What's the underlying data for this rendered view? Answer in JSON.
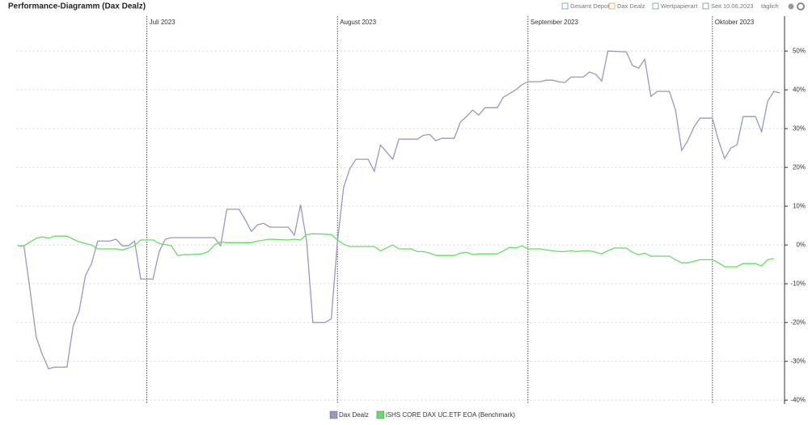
{
  "chart_data": {
    "type": "line",
    "title": "Performance-Diagramm (Dax Dealz)",
    "xlim": [
      0,
      124
    ],
    "xticks": [
      {
        "value": 21,
        "label": "Juli 2023"
      },
      {
        "value": 52,
        "label": "August 2023"
      },
      {
        "value": 83,
        "label": "September 2023"
      },
      {
        "value": 113,
        "label": "Oktober 2023"
      }
    ],
    "ylim": [
      -41,
      59
    ],
    "yticks": [
      {
        "value": 50,
        "label": "50%"
      },
      {
        "value": 40,
        "label": "40%"
      },
      {
        "value": 30,
        "label": "30%"
      },
      {
        "value": 20,
        "label": "20%"
      },
      {
        "value": 10,
        "label": "10%"
      },
      {
        "value": 0,
        "label": "0%"
      },
      {
        "value": -10,
        "label": "-10%"
      },
      {
        "value": -20,
        "label": "-20%"
      },
      {
        "value": -30,
        "label": "-30%"
      },
      {
        "value": -40,
        "label": "-40%"
      }
    ],
    "grid": true,
    "series": [
      {
        "name": "Dax Dealz",
        "color": "#9797c6",
        "x": [
          0,
          1,
          2,
          3,
          4,
          5,
          6,
          8,
          9,
          10,
          11,
          12,
          13,
          15,
          16,
          17,
          18,
          19,
          20,
          22,
          23,
          24,
          25,
          32,
          33,
          34,
          36,
          37,
          38,
          39,
          40,
          41,
          44,
          45,
          46,
          47,
          48,
          50,
          51,
          52,
          53,
          54,
          55,
          57,
          58,
          59,
          61,
          62,
          65,
          66,
          67,
          68,
          69,
          71,
          72,
          73,
          74,
          75,
          76,
          78,
          79,
          81,
          82,
          83,
          85,
          86,
          87,
          88,
          89,
          90,
          92,
          93,
          94,
          95,
          96,
          99,
          100,
          101,
          102,
          103,
          104,
          106,
          107,
          108,
          109,
          110,
          111,
          113,
          114,
          115,
          116,
          117,
          118,
          120,
          121,
          122,
          123,
          124
        ],
        "values": [
          -0.2,
          -0.2,
          -11.7,
          -23.8,
          -28.3,
          -31.9,
          -31.5,
          -31.5,
          -21.0,
          -16.9,
          -7.9,
          -4.8,
          1.0,
          1.0,
          1.5,
          -0.2,
          -0.2,
          1.0,
          -8.8,
          -8.8,
          -1.7,
          1.5,
          1.9,
          1.9,
          -0.2,
          9.2,
          9.2,
          6.5,
          3.5,
          5.2,
          5.6,
          4.6,
          4.6,
          2.5,
          10.4,
          0.8,
          -20.0,
          -20.0,
          -19.0,
          0.8,
          14.8,
          19.6,
          22.1,
          22.1,
          19.0,
          25.8,
          22.1,
          27.3,
          27.3,
          28.3,
          28.5,
          26.9,
          27.5,
          27.5,
          31.7,
          33.1,
          34.8,
          33.5,
          35.4,
          35.4,
          38.1,
          40.0,
          41.3,
          42.1,
          42.1,
          42.5,
          42.5,
          42.1,
          41.9,
          43.3,
          43.3,
          44.6,
          44.0,
          42.3,
          50.0,
          49.8,
          46.3,
          45.6,
          47.9,
          38.3,
          39.6,
          39.6,
          34.8,
          24.4,
          26.9,
          30.4,
          32.7,
          32.7,
          26.9,
          22.3,
          25.0,
          25.8,
          33.1,
          33.1,
          29.2,
          37.1,
          39.6,
          39.2
        ]
      },
      {
        "name": "iSHS CORE DAX UC.ETF EOA (Benchmark)",
        "color": "#66dd66",
        "x": [
          0,
          1,
          2,
          3,
          4,
          5,
          6,
          8,
          9,
          10,
          12,
          13,
          16,
          17,
          18,
          19,
          20,
          22,
          23,
          25,
          26,
          27,
          28,
          30,
          31,
          32,
          33,
          34,
          38,
          39,
          41,
          44,
          45,
          46,
          47,
          48,
          51,
          52,
          53,
          54,
          58,
          59,
          61,
          62,
          64,
          65,
          66,
          67,
          68,
          71,
          72,
          73,
          74,
          75,
          78,
          79,
          80,
          81,
          82,
          83,
          85,
          86,
          87,
          88,
          89,
          90,
          91,
          92,
          93,
          94,
          95,
          96,
          97,
          99,
          100,
          101,
          102,
          103,
          106,
          107,
          108,
          109,
          110,
          111,
          113,
          114,
          115,
          117,
          118,
          120,
          121,
          122,
          123
        ],
        "values": [
          -0.2,
          -0.2,
          0.8,
          1.7,
          2.1,
          1.7,
          2.3,
          2.3,
          1.5,
          0.8,
          0.0,
          -1.0,
          -1.0,
          -1.3,
          -0.8,
          -0.2,
          1.3,
          1.3,
          0.4,
          -0.2,
          -2.7,
          -2.5,
          -2.5,
          -2.3,
          -1.7,
          0.0,
          0.8,
          0.6,
          0.6,
          1.0,
          1.5,
          1.3,
          1.5,
          1.3,
          2.7,
          2.9,
          2.7,
          1.3,
          0.2,
          -0.4,
          -0.4,
          -1.5,
          0.0,
          -1.0,
          -1.0,
          -1.7,
          -1.7,
          -2.1,
          -2.7,
          -2.7,
          -2.1,
          -1.9,
          -2.5,
          -2.3,
          -2.3,
          -1.5,
          -0.6,
          -0.8,
          -0.2,
          -1.0,
          -1.0,
          -1.3,
          -1.5,
          -1.7,
          -1.7,
          -1.5,
          -1.7,
          -1.5,
          -1.5,
          -1.9,
          -2.3,
          -1.5,
          -0.8,
          -0.8,
          -1.9,
          -2.5,
          -2.1,
          -2.9,
          -2.9,
          -3.8,
          -4.6,
          -4.6,
          -4.2,
          -3.8,
          -3.8,
          -4.6,
          -5.6,
          -5.6,
          -4.8,
          -4.8,
          -5.4,
          -3.8,
          -3.5
        ]
      }
    ]
  },
  "toolbar": [
    "Gesamt Depot",
    "Dax Dealz",
    "Wertpapierart",
    "Seit 10.06.2023",
    "täglich"
  ]
}
